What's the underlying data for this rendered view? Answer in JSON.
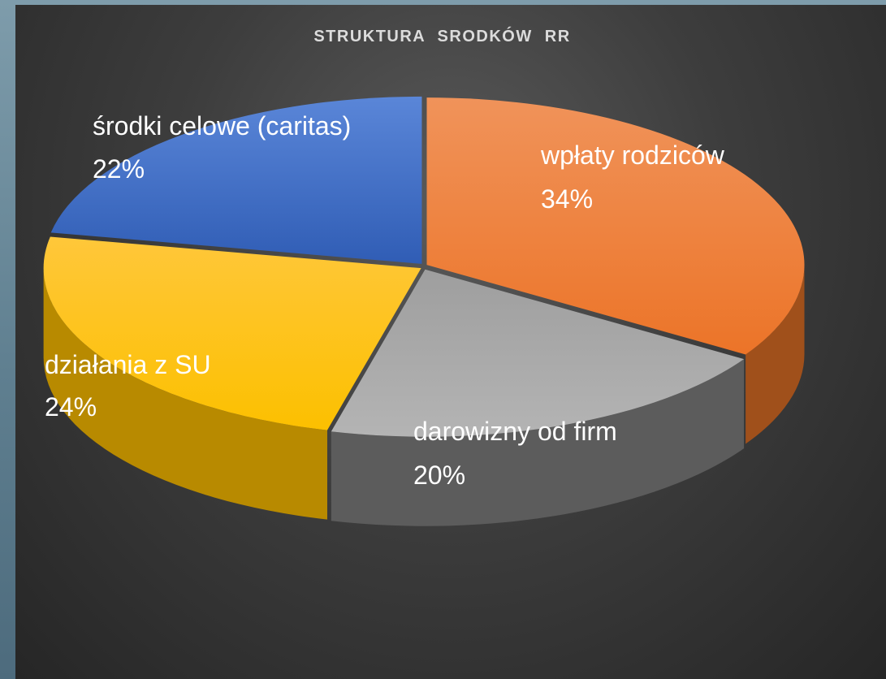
{
  "chart_data": {
    "type": "pie",
    "style": "3d-exploded",
    "title": "STRUKTURA  SRODKÓW  RR",
    "slices": [
      {
        "label": "wpłaty rodziców",
        "value": 34,
        "value_label": "34%",
        "color": "#ED7D31",
        "side_color": "#A0501B"
      },
      {
        "label": "darowizny od firm",
        "value": 20,
        "value_label": "20%",
        "color": "#A5A5A5",
        "side_color": "#5c5c5c"
      },
      {
        "label": "działania z SU",
        "value": 24,
        "value_label": "24%",
        "color": "#FFC000",
        "side_color": "#B88A00"
      },
      {
        "label": "środki celowe (caritas)",
        "value": 22,
        "value_label": "22%",
        "color": "#4472C4",
        "side_color": "#2D4E8A"
      }
    ]
  }
}
